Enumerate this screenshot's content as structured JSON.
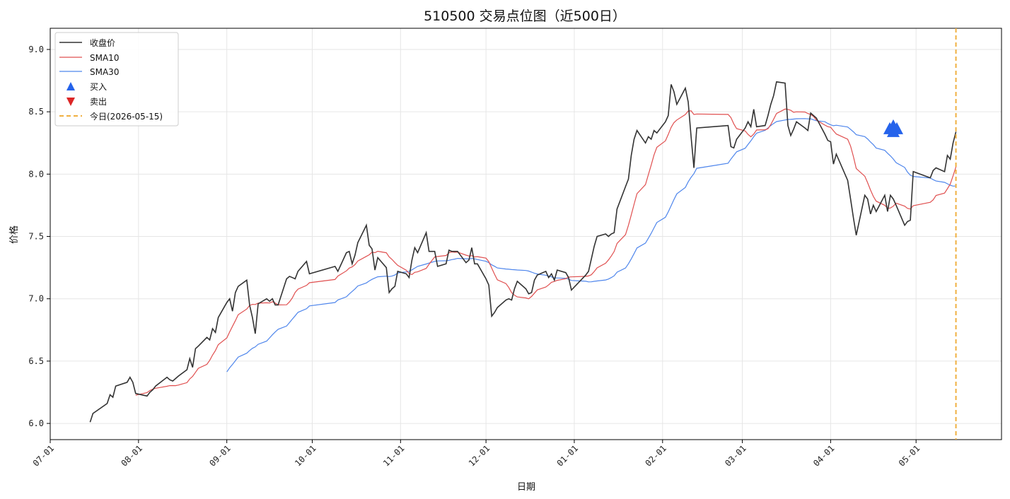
{
  "chart_data": {
    "type": "line",
    "title": "510500 交易点位图（近500日）",
    "xlabel": "日期",
    "ylabel": "价格",
    "x_ticks": [
      "07-01",
      "08-01",
      "09-01",
      "10-01",
      "11-01",
      "12-01",
      "01-01",
      "02-01",
      "03-01",
      "04-01",
      "05-01"
    ],
    "y_ticks": [
      "6.0",
      "6.5",
      "7.0",
      "7.5",
      "8.0",
      "8.5",
      "9.0"
    ],
    "xlim": [
      "2025-07-01",
      "2026-05-31"
    ],
    "ylim": [
      5.87,
      9.17
    ],
    "grid": true,
    "legend_position": "upper-left",
    "series": [
      {
        "name": "收盘价",
        "color": "#333333",
        "x": [
          "2025-07-15",
          "2025-07-16",
          "2025-07-21",
          "2025-07-22",
          "2025-07-23",
          "2025-07-24",
          "2025-07-28",
          "2025-07-29",
          "2025-07-30",
          "2025-07-31",
          "2025-08-04",
          "2025-08-05",
          "2025-08-06",
          "2025-08-07",
          "2025-08-11",
          "2025-08-12",
          "2025-08-13",
          "2025-08-14",
          "2025-08-15",
          "2025-08-18",
          "2025-08-19",
          "2025-08-20",
          "2025-08-21",
          "2025-08-22",
          "2025-08-25",
          "2025-08-26",
          "2025-08-27",
          "2025-08-28",
          "2025-08-29",
          "2025-09-01",
          "2025-09-02",
          "2025-09-03",
          "2025-09-04",
          "2025-09-05",
          "2025-09-08",
          "2025-09-09",
          "2025-09-10",
          "2025-09-11",
          "2025-09-12",
          "2025-09-15",
          "2025-09-16",
          "2025-09-17",
          "2025-09-18",
          "2025-09-19",
          "2025-09-22",
          "2025-09-23",
          "2025-09-24",
          "2025-09-25",
          "2025-09-26",
          "2025-09-29",
          "2025-09-30",
          "2025-10-09",
          "2025-10-10",
          "2025-10-13",
          "2025-10-14",
          "2025-10-15",
          "2025-10-16",
          "2025-10-17",
          "2025-10-20",
          "2025-10-21",
          "2025-10-22",
          "2025-10-23",
          "2025-10-24",
          "2025-10-27",
          "2025-10-28",
          "2025-10-29",
          "2025-10-30",
          "2025-10-31",
          "2025-11-03",
          "2025-11-04",
          "2025-11-05",
          "2025-11-06",
          "2025-11-07",
          "2025-11-10",
          "2025-11-11",
          "2025-11-12",
          "2025-11-13",
          "2025-11-14",
          "2025-11-17",
          "2025-11-18",
          "2025-11-19",
          "2025-11-20",
          "2025-11-21",
          "2025-11-24",
          "2025-11-25",
          "2025-11-26",
          "2025-11-27",
          "2025-11-28",
          "2025-12-01",
          "2025-12-02",
          "2025-12-03",
          "2025-12-04",
          "2025-12-05",
          "2025-12-08",
          "2025-12-09",
          "2025-12-10",
          "2025-12-11",
          "2025-12-12",
          "2025-12-15",
          "2025-12-16",
          "2025-12-17",
          "2025-12-18",
          "2025-12-19",
          "2025-12-22",
          "2025-12-23",
          "2025-12-24",
          "2025-12-25",
          "2025-12-26",
          "2025-12-29",
          "2025-12-30",
          "2025-12-31",
          "2026-01-05",
          "2026-01-06",
          "2026-01-07",
          "2026-01-08",
          "2026-01-09",
          "2026-01-12",
          "2026-01-13",
          "2026-01-14",
          "2026-01-15",
          "2026-01-16",
          "2026-01-19",
          "2026-01-20",
          "2026-01-21",
          "2026-01-22",
          "2026-01-23",
          "2026-01-26",
          "2026-01-27",
          "2026-01-28",
          "2026-01-29",
          "2026-01-30",
          "2026-02-02",
          "2026-02-03",
          "2026-02-04",
          "2026-02-05",
          "2026-02-06",
          "2026-02-09",
          "2026-02-10",
          "2026-02-11",
          "2026-02-12",
          "2026-02-13",
          "2026-02-24",
          "2026-02-25",
          "2026-02-26",
          "2026-02-27",
          "2026-03-02",
          "2026-03-03",
          "2026-03-04",
          "2026-03-05",
          "2026-03-06",
          "2026-03-09",
          "2026-03-10",
          "2026-03-11",
          "2026-03-12",
          "2026-03-13",
          "2026-03-16",
          "2026-03-17",
          "2026-03-18",
          "2026-03-19",
          "2026-03-20",
          "2026-03-23",
          "2026-03-24",
          "2026-03-25",
          "2026-03-26",
          "2026-03-27",
          "2026-03-30",
          "2026-03-31",
          "2026-04-01",
          "2026-04-02",
          "2026-04-03",
          "2026-04-07",
          "2026-04-08",
          "2026-04-09",
          "2026-04-10",
          "2026-04-13",
          "2026-04-14",
          "2026-04-15",
          "2026-04-16",
          "2026-04-17",
          "2026-04-20",
          "2026-04-21",
          "2026-04-22",
          "2026-04-23",
          "2026-04-24",
          "2026-04-27",
          "2026-04-28",
          "2026-04-29",
          "2026-04-30",
          "2026-05-06",
          "2026-05-07",
          "2026-05-08",
          "2026-05-11",
          "2026-05-12",
          "2026-05-13",
          "2026-05-14",
          "2026-05-15"
        ],
        "values": [
          6.01,
          6.08,
          6.16,
          6.23,
          6.21,
          6.3,
          6.33,
          6.37,
          6.33,
          6.24,
          6.22,
          6.25,
          6.27,
          6.3,
          6.37,
          6.35,
          6.34,
          6.36,
          6.38,
          6.43,
          6.52,
          6.45,
          6.6,
          6.62,
          6.69,
          6.67,
          6.76,
          6.73,
          6.85,
          6.97,
          7.0,
          6.9,
          7.05,
          7.1,
          7.15,
          6.95,
          6.85,
          6.72,
          6.96,
          7.0,
          6.98,
          7.0,
          6.95,
          6.95,
          7.16,
          7.18,
          7.17,
          7.16,
          7.22,
          7.3,
          7.2,
          7.26,
          7.22,
          7.37,
          7.38,
          7.28,
          7.35,
          7.45,
          7.59,
          7.43,
          7.4,
          7.23,
          7.33,
          7.25,
          7.05,
          7.08,
          7.1,
          7.22,
          7.2,
          7.17,
          7.31,
          7.41,
          7.37,
          7.53,
          7.38,
          7.38,
          7.38,
          7.26,
          7.28,
          7.39,
          7.38,
          7.38,
          7.38,
          7.29,
          7.31,
          7.41,
          7.28,
          7.28,
          7.16,
          7.11,
          6.86,
          6.89,
          6.93,
          6.99,
          7.0,
          6.99,
          7.08,
          7.14,
          7.08,
          7.04,
          7.05,
          7.15,
          7.19,
          7.22,
          7.17,
          7.2,
          7.15,
          7.23,
          7.21,
          7.17,
          7.07,
          7.19,
          7.22,
          7.32,
          7.42,
          7.5,
          7.52,
          7.5,
          7.52,
          7.53,
          7.72,
          7.9,
          7.96,
          8.15,
          8.28,
          8.35,
          8.25,
          8.3,
          8.28,
          8.35,
          8.33,
          8.42,
          8.47,
          8.72,
          8.66,
          8.56,
          8.69,
          8.58,
          8.3,
          8.05,
          8.37,
          8.39,
          8.22,
          8.21,
          8.28,
          8.37,
          8.42,
          8.38,
          8.52,
          8.38,
          8.39,
          8.47,
          8.56,
          8.63,
          8.74,
          8.73,
          8.39,
          8.31,
          8.36,
          8.42,
          8.37,
          8.35,
          8.49,
          8.47,
          8.45,
          8.32,
          8.27,
          8.26,
          8.08,
          8.16,
          7.95,
          7.8,
          7.65,
          7.51,
          7.83,
          7.8,
          7.68,
          7.75,
          7.7,
          7.83,
          7.7,
          7.83,
          7.8,
          7.75,
          7.59,
          7.62,
          7.63,
          8.02,
          7.97,
          8.03,
          8.05,
          8.02,
          8.15,
          8.12,
          8.25,
          8.34
        ],
        "_note_ignore": ""
      }
    ]
  },
  "legend": {
    "close": "收盘价",
    "sma10": "SMA10",
    "sma30": "SMA30",
    "buy": "买入",
    "sell": "卖出",
    "today": "今日(2026-05-15)"
  },
  "colors": {
    "close": "#333333",
    "sma10": "#e05050",
    "sma30": "#4f86ec",
    "buy": "#2563eb",
    "sell": "#dc2626",
    "today": "#f0b040"
  }
}
